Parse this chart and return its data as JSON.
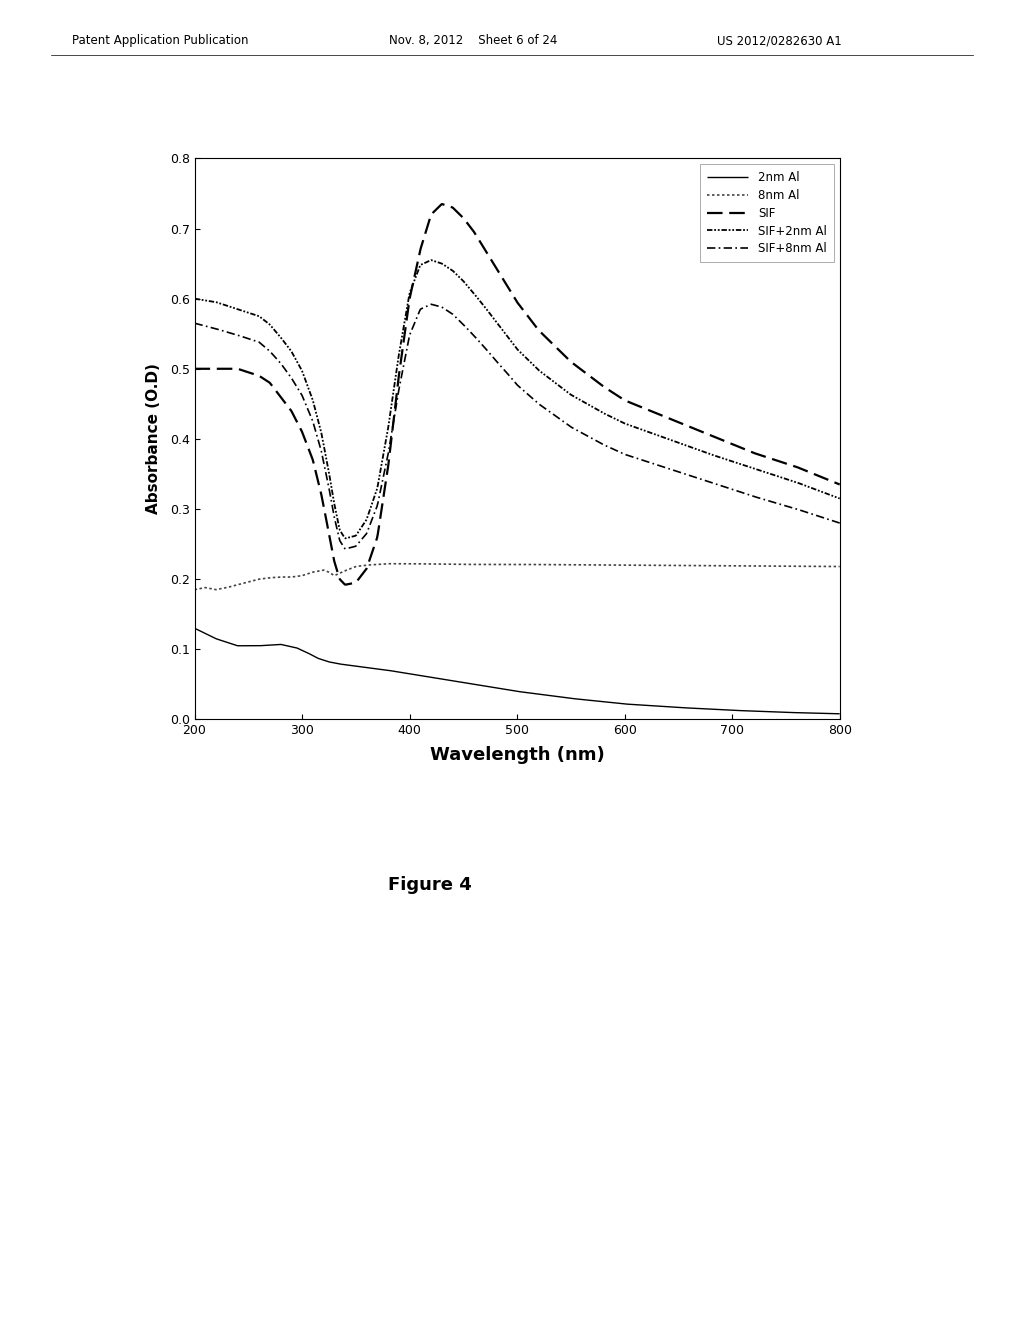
{
  "xlim": [
    200,
    800
  ],
  "ylim": [
    0.0,
    0.8
  ],
  "xlabel": "Wavelength (nm)",
  "ylabel": "Absorbance (O.D)",
  "yticks": [
    0.0,
    0.1,
    0.2,
    0.3,
    0.4,
    0.5,
    0.6,
    0.7,
    0.8
  ],
  "xticks": [
    200,
    300,
    400,
    500,
    600,
    700,
    800
  ],
  "figure_caption": "Figure 4",
  "header_left": "Patent Application Publication",
  "header_mid": "Nov. 8, 2012    Sheet 6 of 24",
  "header_right": "US 2012/0282630 A1",
  "series": [
    {
      "label": "2nm Al",
      "linestyle": "solid",
      "color": "#000000",
      "linewidth": 1.0,
      "points_x": [
        200,
        220,
        240,
        260,
        280,
        295,
        305,
        315,
        325,
        335,
        345,
        360,
        380,
        400,
        420,
        440,
        460,
        480,
        500,
        550,
        600,
        650,
        700,
        750,
        800
      ],
      "points_y": [
        0.13,
        0.115,
        0.105,
        0.105,
        0.107,
        0.102,
        0.095,
        0.087,
        0.082,
        0.079,
        0.077,
        0.074,
        0.07,
        0.065,
        0.06,
        0.055,
        0.05,
        0.045,
        0.04,
        0.03,
        0.022,
        0.017,
        0.013,
        0.01,
        0.008
      ]
    },
    {
      "label": "8nm Al",
      "linestyle": "dotted",
      "color": "#444444",
      "linewidth": 1.2,
      "points_x": [
        200,
        210,
        220,
        230,
        240,
        250,
        260,
        270,
        280,
        290,
        300,
        310,
        320,
        325,
        330,
        340,
        350,
        360,
        380,
        400,
        450,
        500,
        600,
        700,
        800
      ],
      "points_y": [
        0.185,
        0.188,
        0.185,
        0.188,
        0.192,
        0.196,
        0.2,
        0.202,
        0.203,
        0.203,
        0.205,
        0.21,
        0.213,
        0.21,
        0.205,
        0.212,
        0.218,
        0.22,
        0.222,
        0.222,
        0.221,
        0.221,
        0.22,
        0.219,
        0.218
      ]
    },
    {
      "label": "SIF",
      "linestyle": "dashed",
      "color": "#000000",
      "linewidth": 1.6,
      "points_x": [
        200,
        220,
        240,
        260,
        270,
        280,
        290,
        300,
        310,
        318,
        325,
        330,
        335,
        340,
        350,
        360,
        370,
        380,
        390,
        400,
        410,
        420,
        430,
        440,
        450,
        460,
        470,
        480,
        490,
        500,
        520,
        550,
        580,
        600,
        640,
        680,
        720,
        760,
        800
      ],
      "points_y": [
        0.5,
        0.5,
        0.5,
        0.49,
        0.48,
        0.46,
        0.44,
        0.41,
        0.37,
        0.32,
        0.265,
        0.225,
        0.2,
        0.192,
        0.195,
        0.215,
        0.26,
        0.36,
        0.49,
        0.6,
        0.67,
        0.72,
        0.735,
        0.73,
        0.715,
        0.695,
        0.67,
        0.645,
        0.62,
        0.595,
        0.555,
        0.51,
        0.475,
        0.455,
        0.43,
        0.405,
        0.38,
        0.36,
        0.335
      ]
    },
    {
      "label": "SIF+2nm Al",
      "linestyle": "dense_dashdot",
      "color": "#000000",
      "linewidth": 1.3,
      "points_x": [
        200,
        220,
        240,
        260,
        270,
        280,
        290,
        300,
        310,
        318,
        325,
        330,
        335,
        340,
        350,
        360,
        370,
        380,
        390,
        400,
        410,
        420,
        430,
        440,
        450,
        460,
        470,
        480,
        490,
        500,
        520,
        550,
        580,
        600,
        640,
        680,
        720,
        760,
        800
      ],
      "points_y": [
        0.6,
        0.595,
        0.585,
        0.575,
        0.563,
        0.545,
        0.525,
        0.497,
        0.455,
        0.408,
        0.352,
        0.307,
        0.27,
        0.258,
        0.262,
        0.285,
        0.33,
        0.415,
        0.52,
        0.608,
        0.648,
        0.655,
        0.65,
        0.64,
        0.625,
        0.607,
        0.588,
        0.568,
        0.548,
        0.528,
        0.498,
        0.463,
        0.437,
        0.422,
        0.4,
        0.378,
        0.358,
        0.338,
        0.315
      ]
    },
    {
      "label": "SIF+8nm Al",
      "linestyle": "sparse_dashdot",
      "color": "#000000",
      "linewidth": 1.2,
      "points_x": [
        200,
        220,
        240,
        260,
        270,
        280,
        290,
        300,
        310,
        318,
        325,
        330,
        335,
        340,
        350,
        360,
        370,
        380,
        390,
        400,
        410,
        420,
        430,
        440,
        450,
        460,
        470,
        480,
        490,
        500,
        520,
        550,
        580,
        600,
        640,
        680,
        720,
        760,
        800
      ],
      "points_y": [
        0.565,
        0.557,
        0.548,
        0.538,
        0.525,
        0.508,
        0.487,
        0.462,
        0.425,
        0.382,
        0.33,
        0.288,
        0.255,
        0.243,
        0.247,
        0.265,
        0.305,
        0.378,
        0.47,
        0.548,
        0.585,
        0.592,
        0.588,
        0.578,
        0.563,
        0.547,
        0.53,
        0.512,
        0.495,
        0.477,
        0.45,
        0.417,
        0.392,
        0.378,
        0.358,
        0.338,
        0.318,
        0.3,
        0.28
      ]
    }
  ]
}
